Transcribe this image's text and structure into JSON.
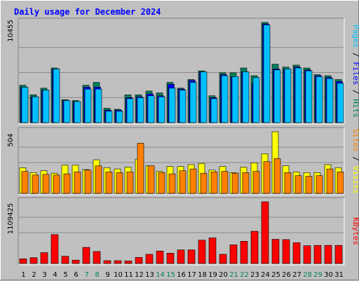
{
  "chart_data": [
    {
      "type": "bar",
      "title": "Daily usage for December 2024",
      "categories": [
        "1",
        "2",
        "3",
        "4",
        "5",
        "6",
        "7",
        "8",
        "9",
        "10",
        "11",
        "12",
        "13",
        "14",
        "15",
        "16",
        "17",
        "18",
        "19",
        "20",
        "21",
        "22",
        "23",
        "24",
        "25",
        "26",
        "27",
        "28",
        "29",
        "30",
        "31"
      ],
      "weekend_days": [
        "7",
        "8",
        "14",
        "15",
        "21",
        "22",
        "28",
        "29"
      ],
      "ylim_max_label": "10455",
      "ylim": [
        0,
        10455
      ],
      "legend": [
        {
          "label": "Pages",
          "color": "#00c0ff"
        },
        {
          "label": "Files",
          "color": "#0000ff"
        },
        {
          "label": "Hits",
          "color": "#00805c"
        }
      ],
      "series": [
        {
          "name": "Hits",
          "color": "#00805c",
          "values": [
            3900,
            2900,
            3600,
            5700,
            2400,
            2300,
            3900,
            4200,
            1500,
            1400,
            2900,
            2900,
            3300,
            3100,
            4200,
            3600,
            4500,
            5400,
            2800,
            5200,
            5200,
            5700,
            4900,
            10455,
            6100,
            5800,
            6000,
            5700,
            5000,
            4900,
            4500
          ]
        },
        {
          "name": "Files",
          "color": "#0000ff",
          "values": [
            3700,
            2700,
            3400,
            5600,
            2300,
            2200,
            3700,
            3700,
            1300,
            1300,
            2600,
            2700,
            3000,
            2800,
            4000,
            3500,
            4400,
            5300,
            2600,
            5000,
            4800,
            5300,
            4100,
            10300,
            5600,
            5600,
            5800,
            5500,
            4900,
            4700,
            4300
          ]
        },
        {
          "name": "Pages",
          "color": "#00c0ff",
          "values": [
            3700,
            2700,
            3400,
            5600,
            2300,
            2200,
            3500,
            3500,
            1200,
            1200,
            2500,
            2600,
            2800,
            2700,
            3600,
            3400,
            4200,
            5300,
            2500,
            4900,
            4800,
            5300,
            4700,
            10200,
            5500,
            5600,
            5700,
            5400,
            4800,
            4600,
            4100
          ]
        }
      ],
      "side_label": "Pages / Files / Hits"
    },
    {
      "type": "bar",
      "ylim_max_label": "504",
      "ylim": [
        0,
        504
      ],
      "legend": [
        {
          "label": "Sites",
          "color": "#ff8000"
        },
        {
          "label": "Visits",
          "color": "#ffff00"
        }
      ],
      "series": [
        {
          "name": "Visits",
          "color": "#ffff00",
          "values": [
            210,
            170,
            185,
            165,
            230,
            230,
            195,
            275,
            210,
            200,
            215,
            280,
            225,
            180,
            220,
            220,
            235,
            245,
            190,
            220,
            170,
            215,
            250,
            325,
            504,
            225,
            175,
            170,
            170,
            235,
            210
          ]
        },
        {
          "name": "Sites",
          "color": "#ff8000",
          "values": [
            180,
            150,
            155,
            150,
            160,
            175,
            190,
            225,
            175,
            170,
            175,
            410,
            225,
            170,
            160,
            185,
            200,
            165,
            175,
            180,
            165,
            170,
            180,
            260,
            285,
            170,
            145,
            140,
            145,
            200,
            175
          ]
        }
      ],
      "side_label": "Sites / Visits"
    },
    {
      "type": "bar",
      "ylim_max_label": "1109425",
      "ylim": [
        0,
        1109425
      ],
      "legend": [
        {
          "label": "KBytes",
          "color": "#ff0000"
        }
      ],
      "series": [
        {
          "name": "KBytes",
          "color": "#ff0000",
          "values": [
            85000,
            105000,
            195000,
            520000,
            130000,
            60000,
            290000,
            215000,
            50000,
            50000,
            45000,
            110000,
            165000,
            225000,
            185000,
            245000,
            245000,
            420000,
            460000,
            165000,
            335000,
            400000,
            580000,
            1109425,
            435000,
            430000,
            375000,
            320000,
            325000,
            325000,
            325000
          ]
        }
      ],
      "side_label": "KBytes"
    }
  ]
}
